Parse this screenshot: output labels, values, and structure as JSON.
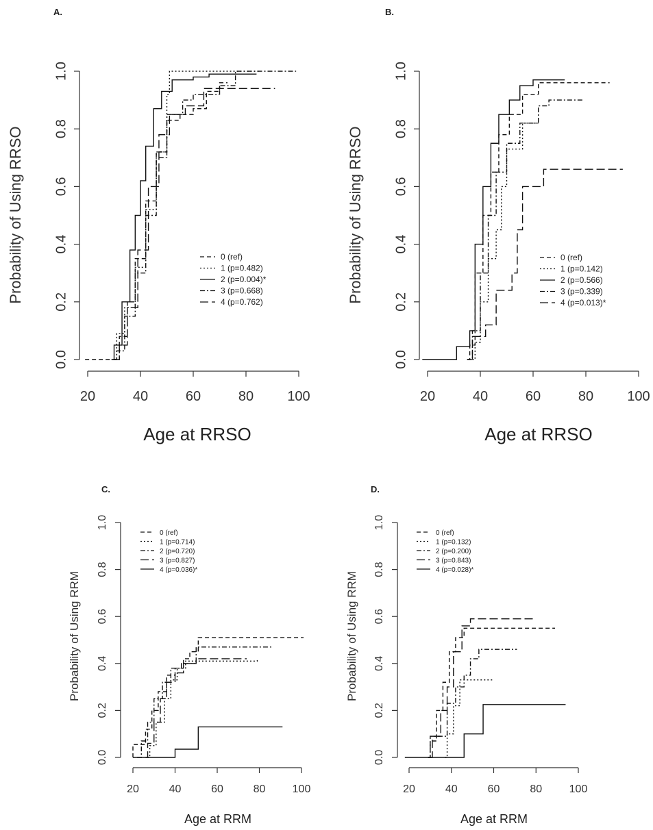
{
  "chart_data": [
    {
      "panel": "A.",
      "type": "line",
      "xlabel": "Age at RRSO",
      "ylabel": "Probability of Using RRSO",
      "xlim": [
        20,
        100
      ],
      "ylim": [
        0,
        1.0
      ],
      "x_ticks": [
        "20",
        "40",
        "60",
        "80",
        "100"
      ],
      "y_ticks": [
        "0.0",
        "0.2",
        "0.4",
        "0.6",
        "0.8",
        "1.0"
      ],
      "legend_position": "center-right",
      "series": [
        {
          "name": "0 (ref)",
          "style": "dashed",
          "points": [
            [
              19,
              0
            ],
            [
              31,
              0
            ],
            [
              32,
              0.08
            ],
            [
              35,
              0.2
            ],
            [
              38,
              0.35
            ],
            [
              42,
              0.55
            ],
            [
              46,
              0.72
            ],
            [
              50,
              0.83
            ],
            [
              55,
              0.85
            ],
            [
              60,
              0.87
            ],
            [
              65,
              0.93
            ],
            [
              70,
              0.96
            ],
            [
              73,
              0.96
            ]
          ]
        },
        {
          "name": "1 (p=0.482)",
          "style": "dotted",
          "points": [
            [
              30,
              0
            ],
            [
              31,
              0.09
            ],
            [
              34,
              0.18
            ],
            [
              38,
              0.32
            ],
            [
              42,
              0.52
            ],
            [
              46,
              0.72
            ],
            [
              50,
              0.92
            ],
            [
              51,
              1.0
            ],
            [
              85,
              1.0
            ]
          ]
        },
        {
          "name": "2 (p=0.004)*",
          "style": "solid",
          "points": [
            [
              29,
              0
            ],
            [
              30,
              0.05
            ],
            [
              33,
              0.2
            ],
            [
              36,
              0.38
            ],
            [
              38,
              0.5
            ],
            [
              40,
              0.62
            ],
            [
              42,
              0.74
            ],
            [
              45,
              0.87
            ],
            [
              48,
              0.93
            ],
            [
              52,
              0.97
            ],
            [
              60,
              0.98
            ],
            [
              66,
              0.99
            ],
            [
              84,
              0.99
            ]
          ]
        },
        {
          "name": "3 (p=0.668)",
          "style": "dashdot",
          "points": [
            [
              30,
              0
            ],
            [
              31,
              0.03
            ],
            [
              34,
              0.15
            ],
            [
              38,
              0.3
            ],
            [
              42,
              0.5
            ],
            [
              46,
              0.7
            ],
            [
              50,
              0.85
            ],
            [
              56,
              0.9
            ],
            [
              60,
              0.92
            ],
            [
              70,
              0.95
            ],
            [
              76,
              1.0
            ],
            [
              99,
              1.0
            ]
          ]
        },
        {
          "name": "4 (p=0.762)",
          "style": "longdash",
          "points": [
            [
              30,
              0
            ],
            [
              32,
              0.05
            ],
            [
              35,
              0.18
            ],
            [
              39,
              0.38
            ],
            [
              43,
              0.6
            ],
            [
              47,
              0.78
            ],
            [
              51,
              0.85
            ],
            [
              57,
              0.88
            ],
            [
              64,
              0.94
            ],
            [
              91,
              0.94
            ]
          ]
        }
      ]
    },
    {
      "panel": "B.",
      "type": "line",
      "xlabel": "Age at RRSO",
      "ylabel": "Probability of Using RRSO",
      "xlim": [
        20,
        100
      ],
      "ylim": [
        0,
        1.0
      ],
      "x_ticks": [
        "20",
        "40",
        "60",
        "80",
        "100"
      ],
      "y_ticks": [
        "0.0",
        "0.2",
        "0.4",
        "0.6",
        "0.8",
        "1.0"
      ],
      "legend_position": "bottom-right",
      "series": [
        {
          "name": "0 (ref)",
          "style": "dashed",
          "points": [
            [
              35,
              0
            ],
            [
              36,
              0.05
            ],
            [
              38,
              0.3
            ],
            [
              41,
              0.5
            ],
            [
              44,
              0.65
            ],
            [
              47,
              0.78
            ],
            [
              51,
              0.85
            ],
            [
              56,
              0.92
            ],
            [
              62,
              0.96
            ],
            [
              89,
              0.96
            ]
          ]
        },
        {
          "name": "1 (p=0.142)",
          "style": "dotted",
          "points": [
            [
              37,
              0
            ],
            [
              38,
              0.06
            ],
            [
              40,
              0.2
            ],
            [
              43,
              0.35
            ],
            [
              46,
              0.45
            ],
            [
              48,
              0.6
            ],
            [
              50,
              0.73
            ],
            [
              54,
              0.73
            ],
            [
              56,
              0.82
            ],
            [
              62,
              0.82
            ]
          ]
        },
        {
          "name": "2 (p=0.566)",
          "style": "solid",
          "points": [
            [
              18,
              0
            ],
            [
              31,
              0
            ],
            [
              31,
              0.045
            ],
            [
              35,
              0.045
            ],
            [
              36,
              0.1
            ],
            [
              38,
              0.4
            ],
            [
              41,
              0.6
            ],
            [
              44,
              0.75
            ],
            [
              47,
              0.85
            ],
            [
              51,
              0.9
            ],
            [
              55,
              0.95
            ],
            [
              60,
              0.97
            ],
            [
              72,
              0.97
            ]
          ]
        },
        {
          "name": "3 (p=0.339)",
          "style": "dashdot",
          "points": [
            [
              35,
              0
            ],
            [
              37,
              0.1
            ],
            [
              40,
              0.3
            ],
            [
              43,
              0.5
            ],
            [
              46,
              0.65
            ],
            [
              50,
              0.75
            ],
            [
              55,
              0.82
            ],
            [
              62,
              0.88
            ],
            [
              66,
              0.9
            ],
            [
              79,
              0.9
            ]
          ]
        },
        {
          "name": "4 (p=0.013)*",
          "style": "longdash",
          "points": [
            [
              37,
              0
            ],
            [
              37,
              0.08
            ],
            [
              42,
              0.08
            ],
            [
              42,
              0.12
            ],
            [
              46,
              0.12
            ],
            [
              46,
              0.24
            ],
            [
              52,
              0.24
            ],
            [
              52,
              0.3
            ],
            [
              54,
              0.45
            ],
            [
              56,
              0.6
            ],
            [
              64,
              0.6
            ],
            [
              64,
              0.66
            ],
            [
              94,
              0.66
            ]
          ]
        }
      ]
    },
    {
      "panel": "C.",
      "type": "line",
      "xlabel": "Age at RRM",
      "ylabel": "Probability of Using RRM",
      "xlim": [
        20,
        100
      ],
      "ylim": [
        0,
        1.0
      ],
      "x_ticks": [
        "20",
        "40",
        "60",
        "80",
        "100"
      ],
      "y_ticks": [
        "0.0",
        "0.2",
        "0.4",
        "0.6",
        "0.8",
        "1.0"
      ],
      "legend_position": "top-left",
      "series": [
        {
          "name": "0 (ref)",
          "style": "dashed",
          "points": [
            [
              20,
              0
            ],
            [
              20,
              0.055
            ],
            [
              24,
              0.055
            ],
            [
              26,
              0.12
            ],
            [
              29,
              0.2
            ],
            [
              32,
              0.28
            ],
            [
              36,
              0.35
            ],
            [
              40,
              0.38
            ],
            [
              44,
              0.42
            ],
            [
              47,
              0.45
            ],
            [
              51,
              0.51
            ],
            [
              101,
              0.51
            ]
          ]
        },
        {
          "name": "1 (p=0.714)",
          "style": "dotted",
          "points": [
            [
              27,
              0
            ],
            [
              28,
              0.05
            ],
            [
              31,
              0.15
            ],
            [
              35,
              0.25
            ],
            [
              38,
              0.33
            ],
            [
              41,
              0.38
            ],
            [
              45,
              0.41
            ],
            [
              79,
              0.42
            ]
          ]
        },
        {
          "name": "2 (p=0.720)",
          "style": "dashdot",
          "points": [
            [
              22,
              0
            ],
            [
              24,
              0.07
            ],
            [
              27,
              0.15
            ],
            [
              30,
              0.25
            ],
            [
              34,
              0.32
            ],
            [
              38,
              0.38
            ],
            [
              43,
              0.4
            ],
            [
              50,
              0.47
            ],
            [
              86,
              0.47
            ]
          ]
        },
        {
          "name": "3 (p=0.827)",
          "style": "longdash",
          "points": [
            [
              26,
              0
            ],
            [
              27,
              0.06
            ],
            [
              30,
              0.15
            ],
            [
              33,
              0.25
            ],
            [
              36,
              0.32
            ],
            [
              40,
              0.36
            ],
            [
              44,
              0.4
            ],
            [
              50,
              0.42
            ],
            [
              74,
              0.42
            ]
          ]
        },
        {
          "name": "4 (p=0.036)*",
          "style": "solid",
          "points": [
            [
              20,
              0
            ],
            [
              40,
              0
            ],
            [
              40,
              0.035
            ],
            [
              51,
              0.035
            ],
            [
              51,
              0.13
            ],
            [
              91,
              0.13
            ]
          ]
        }
      ]
    },
    {
      "panel": "D.",
      "type": "line",
      "xlabel": "Age at RRM",
      "ylabel": "Probability of Using RRM",
      "xlim": [
        20,
        100
      ],
      "ylim": [
        0,
        1.0
      ],
      "x_ticks": [
        "20",
        "40",
        "60",
        "80",
        "100"
      ],
      "y_ticks": [
        "0.0",
        "0.2",
        "0.4",
        "0.6",
        "0.8",
        "1.0"
      ],
      "legend_position": "top-left",
      "series": [
        {
          "name": "0 (ref)",
          "style": "dashed",
          "points": [
            [
              29,
              0
            ],
            [
              30,
              0.07
            ],
            [
              33,
              0.2
            ],
            [
              36,
              0.32
            ],
            [
              39,
              0.45
            ],
            [
              42,
              0.51
            ],
            [
              46,
              0.55
            ],
            [
              89,
              0.55
            ]
          ]
        },
        {
          "name": "1 (p=0.132)",
          "style": "dotted",
          "points": [
            [
              37,
              0
            ],
            [
              38,
              0.1
            ],
            [
              41,
              0.22
            ],
            [
              44,
              0.33
            ],
            [
              60,
              0.33
            ]
          ]
        },
        {
          "name": "2 (p=0.200)",
          "style": "dashdot",
          "points": [
            [
              29,
              0
            ],
            [
              30,
              0.09
            ],
            [
              35,
              0.09
            ],
            [
              38,
              0.23
            ],
            [
              42,
              0.3
            ],
            [
              46,
              0.35
            ],
            [
              49,
              0.42
            ],
            [
              53,
              0.46
            ],
            [
              71,
              0.46
            ]
          ]
        },
        {
          "name": "3 (p=0.843)",
          "style": "longdash",
          "points": [
            [
              30,
              0
            ],
            [
              31,
              0.09
            ],
            [
              35,
              0.2
            ],
            [
              38,
              0.3
            ],
            [
              41,
              0.45
            ],
            [
              45,
              0.56
            ],
            [
              49,
              0.59
            ],
            [
              79,
              0.59
            ]
          ]
        },
        {
          "name": "4 (p=0.028)*",
          "style": "solid",
          "points": [
            [
              18,
              0
            ],
            [
              46,
              0
            ],
            [
              46,
              0.1
            ],
            [
              55,
              0.1
            ],
            [
              55,
              0.225
            ],
            [
              94,
              0.225
            ]
          ]
        }
      ]
    }
  ]
}
